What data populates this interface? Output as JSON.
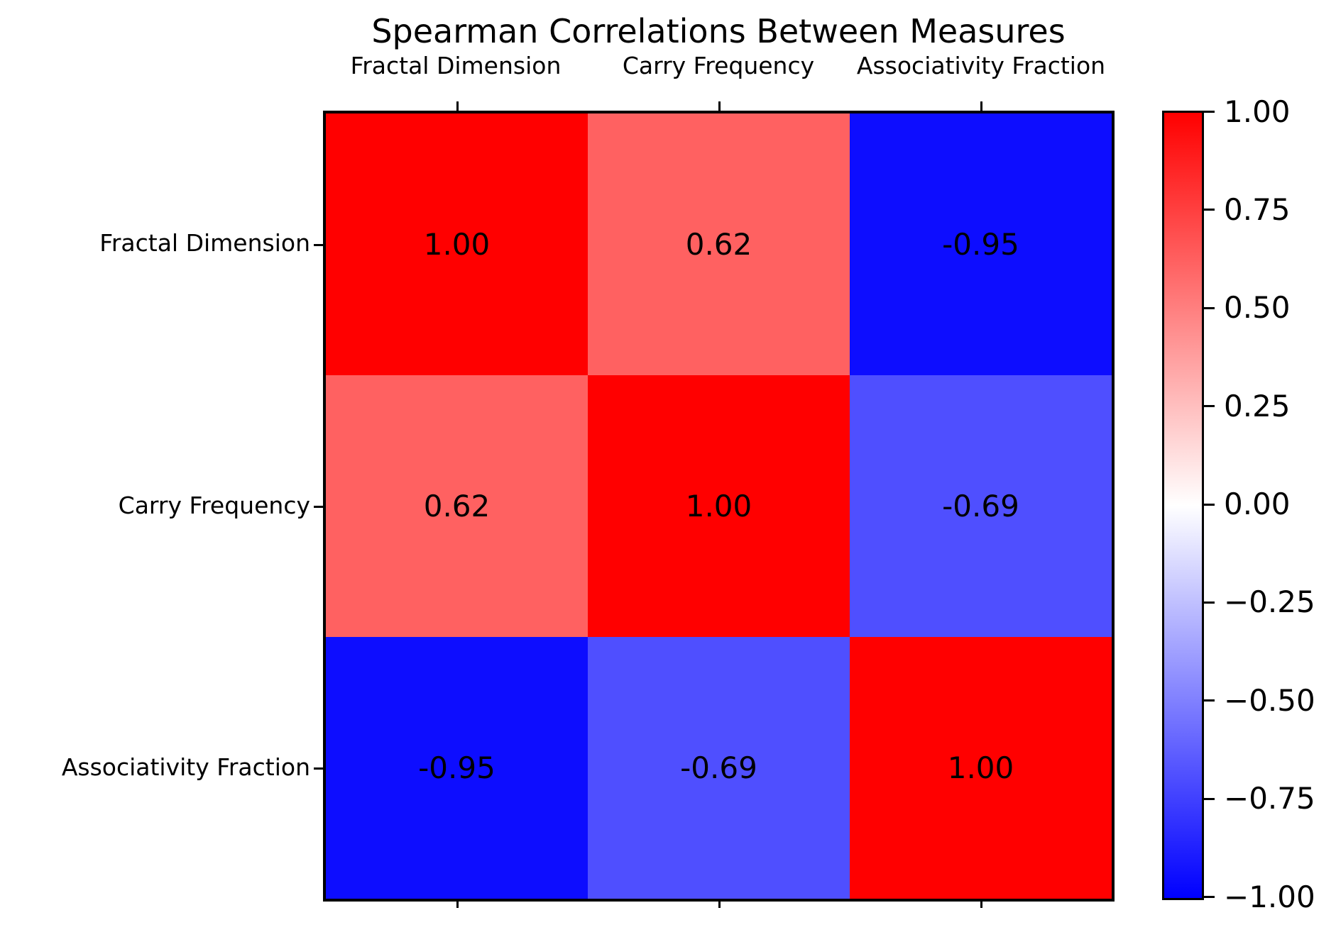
{
  "figure": {
    "title": "Spearman Correlations Between Measures"
  },
  "chart_data": {
    "type": "heatmap",
    "title": "Spearman Correlations Between Measures",
    "categories": [
      "Fractal Dimension",
      "Carry Frequency",
      "Associativity Fraction"
    ],
    "rows": [
      "Fractal Dimension",
      "Carry Frequency",
      "Associativity Fraction"
    ],
    "matrix": [
      [
        1.0,
        0.62,
        -0.95
      ],
      [
        0.62,
        1.0,
        -0.69
      ],
      [
        -0.95,
        -0.69,
        1.0
      ]
    ],
    "cell_labels": [
      [
        "1.00",
        "0.62",
        "-0.95"
      ],
      [
        "0.62",
        "1.00",
        "-0.69"
      ],
      [
        "-0.95",
        "-0.69",
        "1.00"
      ]
    ],
    "cell_colors": [
      [
        "#ff0000",
        "#ff6161",
        "#0d0dff"
      ],
      [
        "#ff6161",
        "#ff0000",
        "#4f4fff"
      ],
      [
        "#0d0dff",
        "#4f4fff",
        "#ff0000"
      ]
    ],
    "colormap": "bwr",
    "vmin": -1.0,
    "vmax": 1.0,
    "colorbar_ticks": [
      "1.00",
      "0.75",
      "0.50",
      "0.25",
      "0.00",
      "−0.25",
      "−0.50",
      "−0.75",
      "−1.00"
    ],
    "colorbar_position": "right",
    "annotation_color": "#000000",
    "grid": false
  }
}
